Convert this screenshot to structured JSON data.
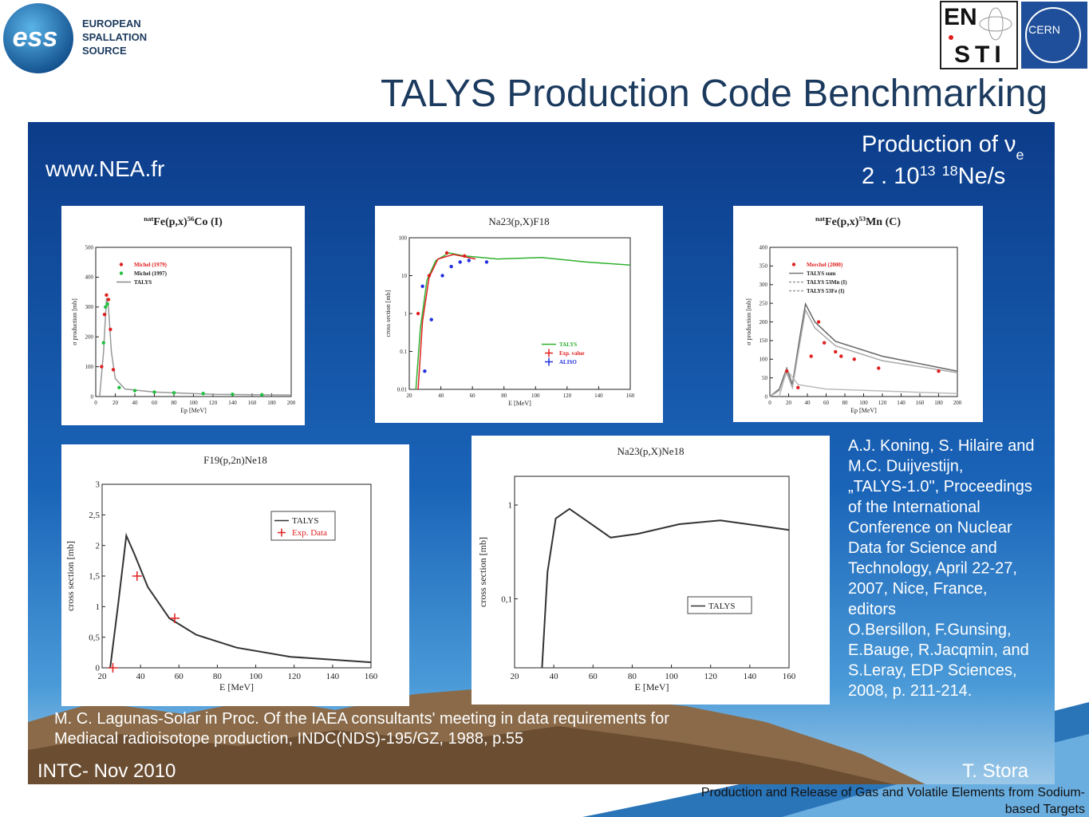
{
  "header": {
    "logo_text": "ess",
    "org_lines": [
      "EUROPEAN",
      "SPALLATION",
      "SOURCE"
    ],
    "partner_lines": [
      "EN",
      "STI"
    ],
    "cern": "CERN",
    "title": "TALYS Production Code Benchmarking"
  },
  "slide": {
    "website": "www.NEA.fr",
    "production": [
      {
        "text": "Production of ν"
      },
      {
        "text": "e",
        "sub": true
      }
    ],
    "rate": [
      {
        "text": "2 . 10"
      },
      {
        "text": "13",
        "sup": true
      },
      {
        "text": " "
      },
      {
        "text": "18",
        "sup": true
      },
      {
        "text": "Ne/s"
      }
    ],
    "panels": [
      {
        "title": [
          {
            "text": "nat",
            "sup": true
          },
          {
            "text": "Fe(p,x)"
          },
          {
            "text": "56",
            "sup": true
          },
          {
            "text": "Co (I)"
          }
        ],
        "x_label": "Ep [MeV]",
        "y_label": "σ production [mb]",
        "x_ticks": [
          0,
          20,
          40,
          60,
          80,
          100,
          120,
          140,
          160,
          180,
          200
        ],
        "y_ticks": [
          0,
          100,
          200,
          300,
          400,
          500
        ],
        "legend": [
          {
            "text": "Michel (1979)",
            "color": "#e02020",
            "style": "dot"
          },
          {
            "text": "Michel (1997)",
            "color": "#20c040",
            "style": "dot"
          },
          {
            "text": "TALYS",
            "color": "#888888",
            "style": "line"
          }
        ]
      },
      {
        "title": [
          {
            "text": "Na23(p,X)F18"
          }
        ],
        "x_label": "E [MeV]",
        "y_label": "cross section [mb]",
        "x_ticks": [
          20,
          40,
          60,
          80,
          100,
          120,
          140,
          160
        ],
        "y_ticks": [
          0.01,
          0.1,
          1,
          10,
          100
        ],
        "legend": [
          {
            "text": "TALYS",
            "color": "#2fb02f",
            "style": "line"
          },
          {
            "text": "Exp. value",
            "color": "#e02020",
            "style": "cross"
          },
          {
            "text": "ALISO",
            "color": "#2030e0",
            "style": "cross"
          }
        ]
      },
      {
        "title": [
          {
            "text": "nat",
            "sup": true
          },
          {
            "text": "Fe(p,x)"
          },
          {
            "text": "53",
            "sup": true
          },
          {
            "text": "Mn (C)"
          }
        ],
        "x_label": "Ep [MeV]",
        "y_label": "σ production [mb]",
        "x_ticks": [
          0,
          20,
          40,
          60,
          80,
          100,
          120,
          140,
          160,
          180,
          200
        ],
        "y_ticks": [
          0,
          50,
          100,
          150,
          200,
          250,
          300,
          350,
          400
        ],
        "legend": [
          {
            "text": "Merchel (2000)",
            "color": "#e02020",
            "style": "dot"
          },
          {
            "text": "TALYS sum",
            "color": "#777777",
            "style": "line"
          },
          {
            "text": "TALYS 53Mn (I)",
            "color": "#999999",
            "style": "dash"
          },
          {
            "text": "TALYS 53Fe (I)",
            "color": "#999999",
            "style": "dash"
          }
        ]
      },
      {
        "title": [
          {
            "text": "F19(p,2n)Ne18"
          }
        ],
        "x_label": "E [MeV]",
        "y_label": "cross section [mb]",
        "x_ticks": [
          20,
          40,
          60,
          80,
          100,
          120,
          140,
          160
        ],
        "y_ticks": [
          "0",
          "0,5",
          "1",
          "1,5",
          "2",
          "2,5",
          "3"
        ],
        "legend": [
          {
            "text": "TALYS",
            "color": "#333333",
            "style": "line"
          },
          {
            "text": "Exp. Data",
            "color": "#e02020",
            "style": "cross"
          }
        ]
      },
      {
        "title": [
          {
            "text": "Na23(p,X)Ne18"
          }
        ],
        "x_label": "E [MeV]",
        "y_label": "cross section [mb]",
        "x_ticks": [
          20,
          40,
          60,
          80,
          100,
          120,
          140,
          160
        ],
        "y_ticks": [
          "0,1",
          "1"
        ],
        "legend": [
          {
            "text": "TALYS",
            "color": "#333333",
            "style": "line"
          }
        ]
      }
    ],
    "reference_lines": [
      "A.J. Koning, S. Hilaire and",
      "M.C. Duijvestijn,",
      "„TALYS-1.0\", Proceedings",
      "of the International",
      "Conference on Nuclear",
      "Data for Science and",
      "Technology, April 22-27,",
      "2007, Nice, France,",
      "editors",
      "O.Bersillon, F.Gunsing,",
      "E.Bauge, R.Jacqmin, and",
      "S.Leray, EDP Sciences,",
      "2008, p. 211-214."
    ],
    "citation_lines": [
      "M. C. Lagunas-Solar in Proc. Of the IAEA consultants' meeting in data requirements for",
      "Mediacal radioisotope production, INDC(NDS)-195/GZ, 1988, p.55"
    ],
    "footer_left": "INTC- Nov 2010",
    "footer_right": "T. Stora"
  },
  "footer": {
    "lines": [
      "Production and Release of Gas and Volatile Elements from Sodium-",
      "based Targets"
    ]
  }
}
